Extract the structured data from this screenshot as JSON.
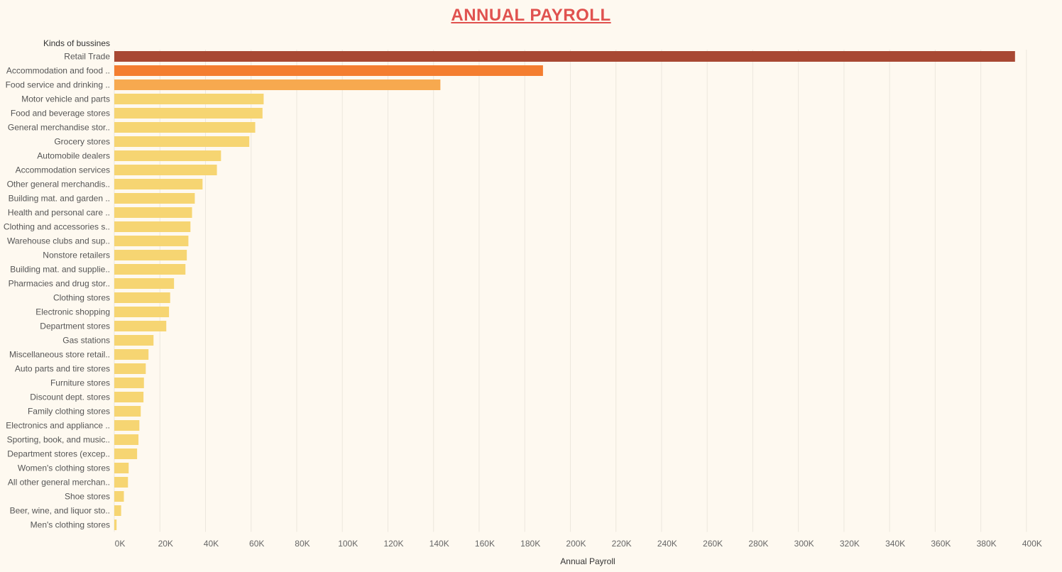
{
  "colors": {
    "background": "#fef9f0",
    "title": "#e0524f",
    "top1": "#a84833",
    "top2": "#f47e30",
    "top3": "#f7a94f",
    "rest": "#f6d572"
  },
  "chart_data": {
    "type": "bar",
    "orientation": "horizontal",
    "title": "ANNUAL PAYROLL",
    "category_header": "Kinds of bussines",
    "xlabel": "Annual Payroll",
    "xlim": [
      0,
      410000
    ],
    "x_ticks": [
      0,
      20000,
      40000,
      60000,
      80000,
      100000,
      120000,
      140000,
      160000,
      180000,
      200000,
      220000,
      240000,
      260000,
      280000,
      300000,
      320000,
      340000,
      360000,
      380000,
      400000
    ],
    "x_tick_labels": [
      "0K",
      "20K",
      "40K",
      "60K",
      "80K",
      "100K",
      "120K",
      "140K",
      "160K",
      "180K",
      "200K",
      "220K",
      "240K",
      "260K",
      "280K",
      "300K",
      "320K",
      "340K",
      "360K",
      "380K",
      "400K"
    ],
    "grid": "vertical",
    "categories": [
      "Retail Trade",
      "Accommodation and food ..",
      "Food service and drinking ..",
      "Motor vehicle and parts",
      "Food and beverage stores",
      "General merchandise stor..",
      "Grocery stores",
      "Automobile dealers",
      "Accommodation services",
      "Other general merchandis..",
      "Building mat. and garden ..",
      "Health and personal care ..",
      "Clothing and accessories s..",
      "Warehouse clubs and sup..",
      "Nonstore retailers",
      "Building mat. and supplie..",
      "Pharmacies and drug stor..",
      "Clothing stores",
      "Electronic shopping",
      "Department stores",
      "Gas stations",
      "Miscellaneous store retail..",
      "Auto parts and tire stores",
      "Furniture stores",
      "Discount dept. stores",
      "Family clothing stores",
      "Electronics and appliance ..",
      "Sporting, book, and  music..",
      "Department stores (excep..",
      "Women's clothing stores",
      "All other general merchan..",
      "Shoe stores",
      "Beer, wine, and liquor sto..",
      "Men's clothing stores"
    ],
    "values": [
      395000,
      188000,
      143000,
      65500,
      65000,
      61800,
      59200,
      46800,
      45000,
      38700,
      35300,
      34100,
      33400,
      32500,
      31800,
      31200,
      26200,
      24500,
      24000,
      22800,
      17200,
      15000,
      13800,
      13000,
      12800,
      11600,
      11000,
      10600,
      10000,
      6300,
      6000,
      4200,
      3000,
      1000
    ]
  }
}
